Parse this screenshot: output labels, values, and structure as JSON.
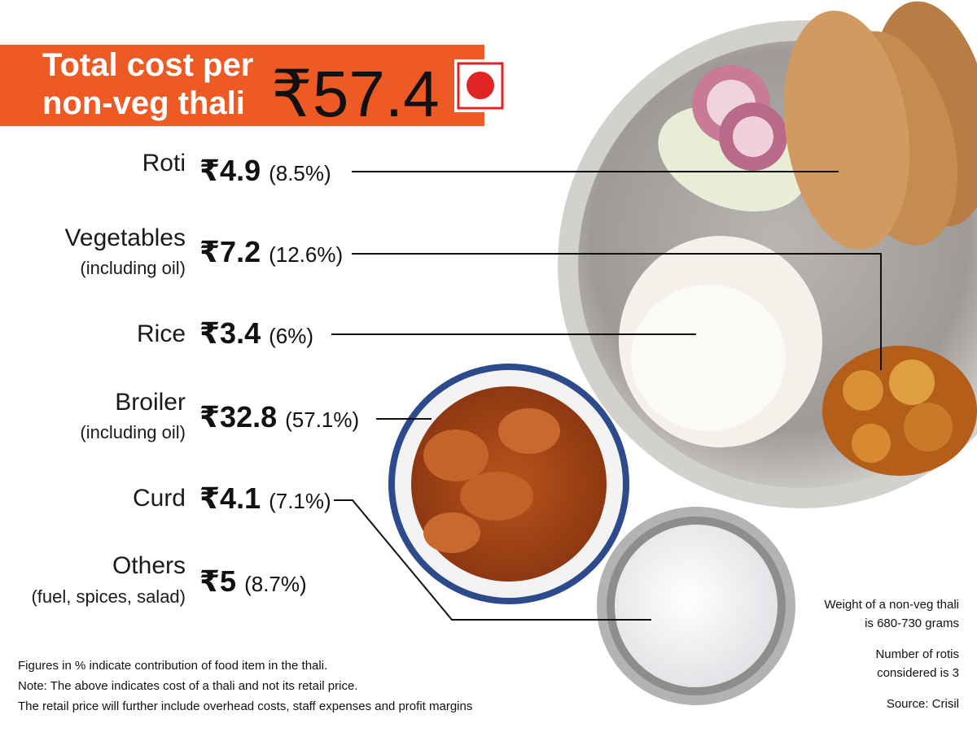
{
  "header": {
    "title_lines": [
      "Total cost per",
      "non-veg thali"
    ],
    "total": "₹57.4"
  },
  "items": [
    {
      "name": "Roti",
      "price": "₹4.9",
      "share": "(8.5%)"
    },
    {
      "name": "Vegetables",
      "note": "(including oil)",
      "price": "₹7.2",
      "share": "(12.6%)"
    },
    {
      "name": "Rice",
      "price": "₹3.4",
      "share": "(6%)"
    },
    {
      "name": "Broiler",
      "note": "(including oil)",
      "price": "₹32.8",
      "share": "(57.1%)"
    },
    {
      "name": "Curd",
      "price": "₹4.1",
      "share": "(7.1%)"
    },
    {
      "name": "Others",
      "note": "(fuel, spices, salad)",
      "price": "₹5",
      "share": "(8.7%)"
    }
  ],
  "footnotes": [
    "Figures in % indicate contribution of food item in the thali.",
    "Note: The above indicates cost of a thali and not its retail price.",
    "The retail price will further include overhead costs, staff expenses  and profit margins"
  ],
  "side_notes": [
    [
      "Weight of a non-veg thali",
      "is 680-730 grams"
    ],
    [
      "Number of rotis",
      "considered is 3"
    ],
    [
      "Source: Crisil"
    ]
  ]
}
